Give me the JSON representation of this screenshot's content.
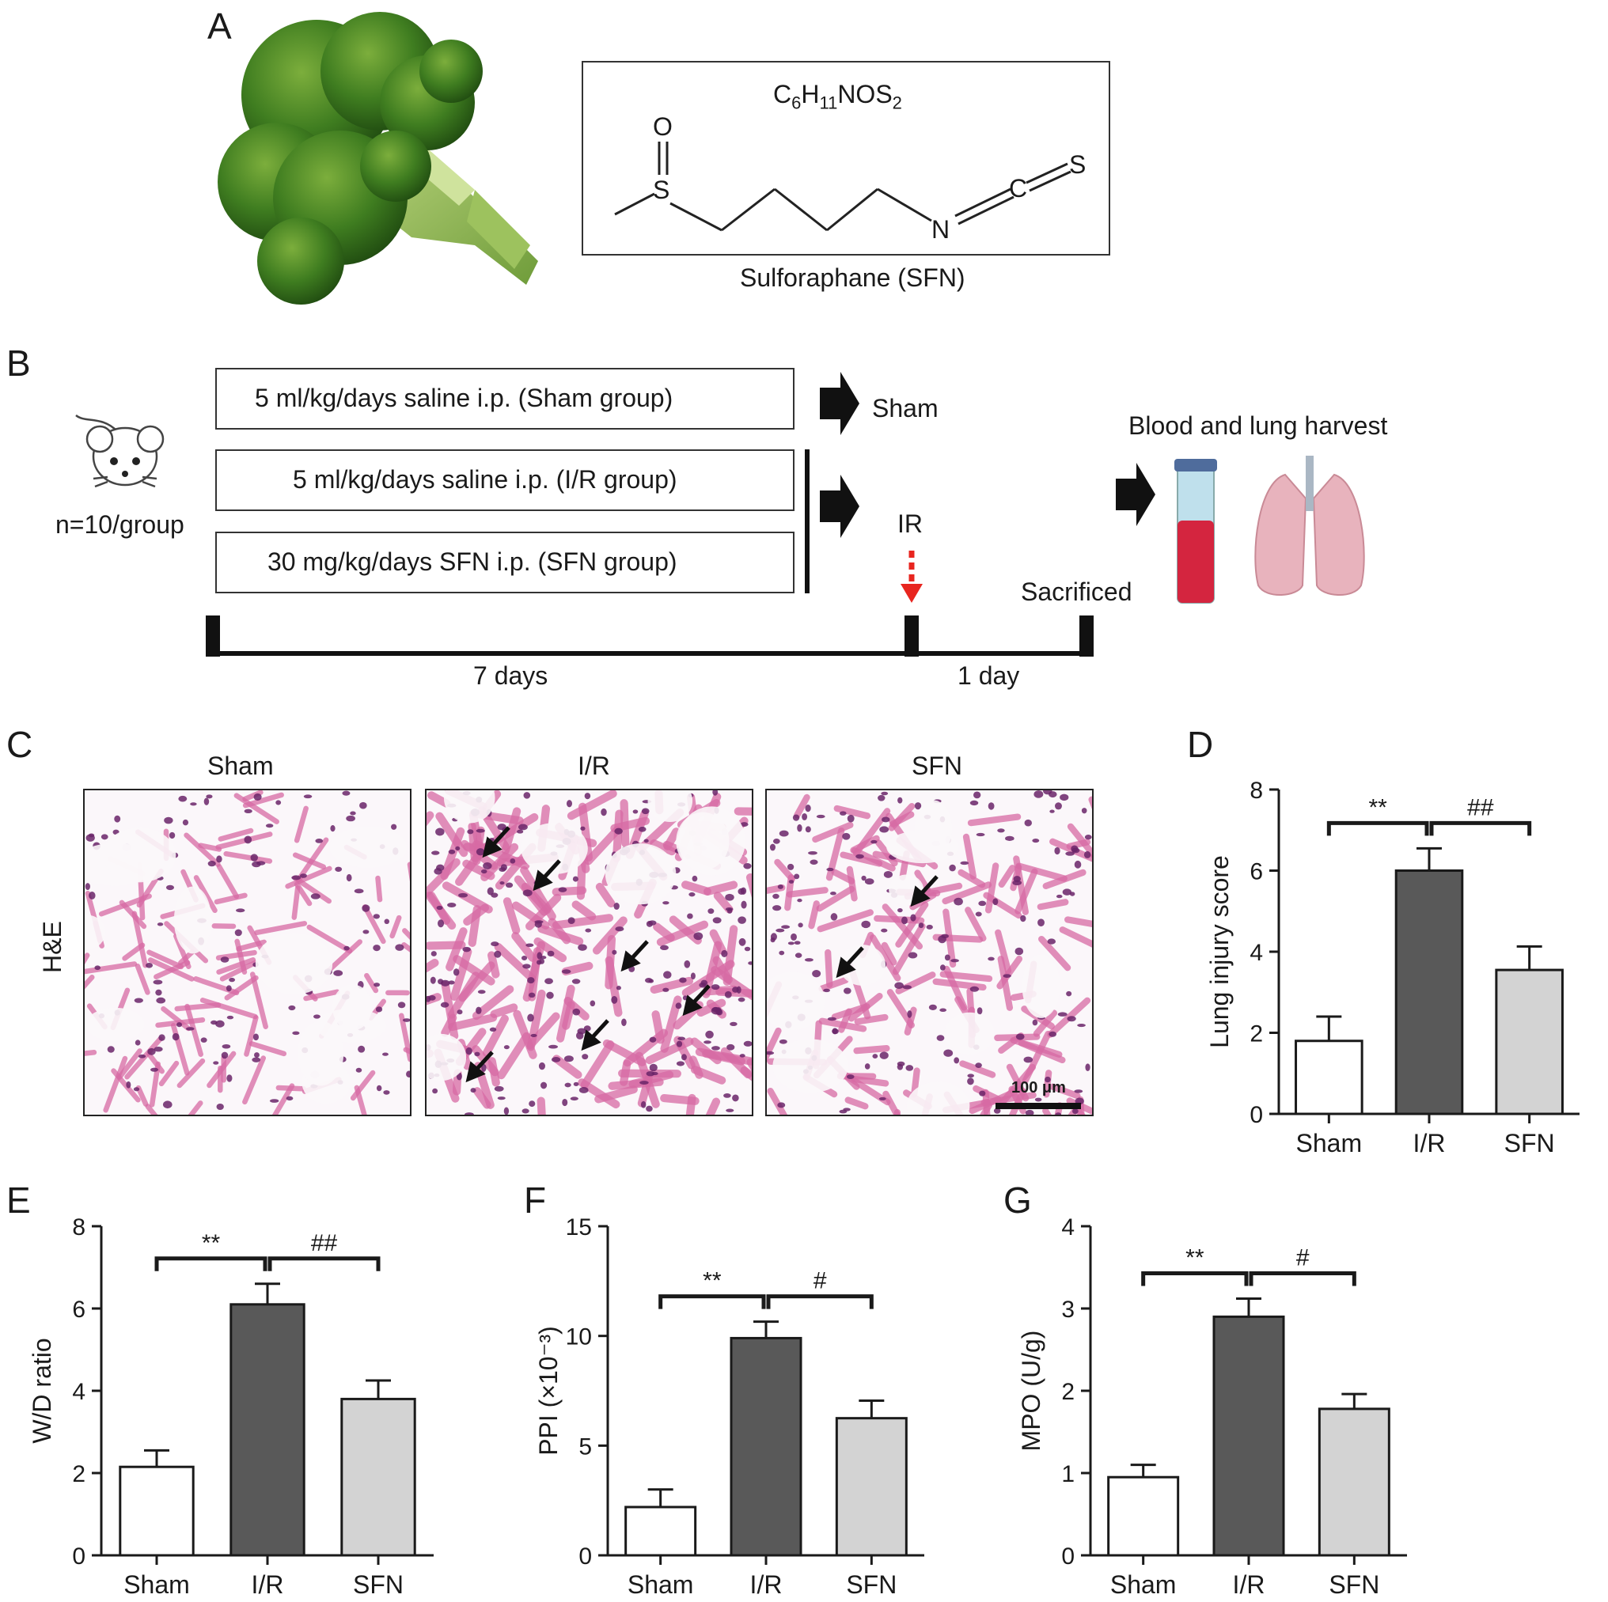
{
  "panels": {
    "A": {
      "letter": "A",
      "formula": {
        "base_c": "C",
        "sub_c": "6",
        "base_h": "H",
        "sub_h": "11",
        "base_rest": "NOS",
        "sub_s": "2"
      },
      "atoms": {
        "O": "O",
        "S1": "S",
        "N": "N",
        "C": "C",
        "S2": "S"
      },
      "compound_caption": "Sulforaphane (SFN)"
    },
    "B": {
      "letter": "B",
      "animal_count": "n=10/group",
      "groups": [
        {
          "label": "5 ml/kg/days saline i.p. (Sham group)"
        },
        {
          "label": "5 ml/kg/days saline i.p. (I/R group)"
        },
        {
          "label": "30 mg/kg/days SFN i.p. (SFN group)"
        }
      ],
      "outcome_sham": "Sham",
      "outcome_ir": "IR",
      "harvest": "Blood and lung harvest",
      "sacrificed": "Sacrificed",
      "period_1": "7 days",
      "period_2": "1 day"
    },
    "C": {
      "letter": "C",
      "stain": "H&E",
      "columns": [
        "Sham",
        "I/R",
        "SFN"
      ],
      "scale_bar": "100 μm"
    },
    "D": {
      "letter": "D"
    },
    "E": {
      "letter": "E"
    },
    "F": {
      "letter": "F"
    },
    "G": {
      "letter": "G"
    }
  },
  "colors": {
    "sham": "#ffffff",
    "ir": "#595959",
    "sfn": "#d3d3d3",
    "arrow_red": "#e8251f",
    "tissue": "#d76aa4",
    "nuclei": "#6a2469"
  },
  "chart_data": [
    {
      "panel": "D",
      "type": "bar",
      "categories": [
        "Sham",
        "I/R",
        "SFN"
      ],
      "values": [
        1.8,
        6.0,
        3.55
      ],
      "errors": [
        0.6,
        0.55,
        0.58
      ],
      "ylabel": "Lung injury score",
      "ylim": [
        0,
        8
      ],
      "yticks": [
        "0",
        "2",
        "4",
        "6",
        "8"
      ],
      "significance": [
        {
          "from": 0,
          "to": 1,
          "label": "**"
        },
        {
          "from": 1,
          "to": 2,
          "label": "##"
        }
      ]
    },
    {
      "panel": "E",
      "type": "bar",
      "categories": [
        "Sham",
        "I/R",
        "SFN"
      ],
      "values": [
        2.15,
        6.1,
        3.8
      ],
      "errors": [
        0.4,
        0.5,
        0.45
      ],
      "ylabel": "W/D ratio",
      "ylim": [
        0,
        8
      ],
      "yticks": [
        "0",
        "2",
        "4",
        "6",
        "8"
      ],
      "significance": [
        {
          "from": 0,
          "to": 1,
          "label": "**"
        },
        {
          "from": 1,
          "to": 2,
          "label": "##"
        }
      ]
    },
    {
      "panel": "F",
      "type": "bar",
      "categories": [
        "Sham",
        "I/R",
        "SFN"
      ],
      "values": [
        2.2,
        9.9,
        6.25
      ],
      "errors": [
        0.8,
        0.75,
        0.8
      ],
      "ylabel": "PPI (×10⁻³)",
      "ylim": [
        0,
        15
      ],
      "yticks": [
        "0",
        "5",
        "10",
        "15"
      ],
      "significance": [
        {
          "from": 0,
          "to": 1,
          "label": "**"
        },
        {
          "from": 1,
          "to": 2,
          "label": "#"
        }
      ]
    },
    {
      "panel": "G",
      "type": "bar",
      "categories": [
        "Sham",
        "I/R",
        "SFN"
      ],
      "values": [
        0.95,
        2.9,
        1.78
      ],
      "errors": [
        0.15,
        0.22,
        0.18
      ],
      "ylabel": "MPO (U/g)",
      "ylim": [
        0,
        4
      ],
      "yticks": [
        "0",
        "1",
        "2",
        "3",
        "4"
      ],
      "significance": [
        {
          "from": 0,
          "to": 1,
          "label": "**"
        },
        {
          "from": 1,
          "to": 2,
          "label": "#"
        }
      ]
    }
  ]
}
